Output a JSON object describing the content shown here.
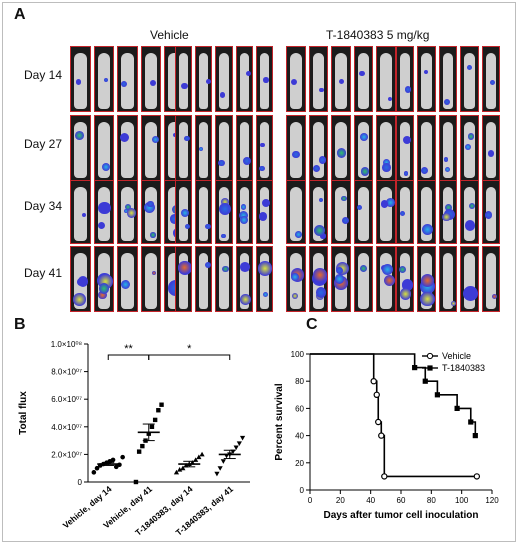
{
  "panels": {
    "a": {
      "label": "A",
      "groups": [
        "Vehicle",
        "T-1840383 5 mg/kg"
      ],
      "days": [
        "Day 14",
        "Day 27",
        "Day 34",
        "Day 41"
      ]
    },
    "b": {
      "label": "B"
    },
    "c": {
      "label": "C"
    }
  },
  "chart_data": [
    {
      "type": "scatter",
      "panel": "B",
      "ylabel": "Total flux",
      "categories": [
        "Vehicle, day 14",
        "Vehicle, day 41",
        "T-1840383, day 14",
        "T-1840383, day 41"
      ],
      "y_ticks": [
        0,
        20000000,
        40000000,
        60000000,
        80000000,
        100000000
      ],
      "y_tick_labels": [
        "0",
        "2.0×10⁰⁷",
        "4.0×10⁰⁷",
        "6.0×10⁰⁷",
        "8.0×10⁰⁷",
        "1.0×10⁰⁸"
      ],
      "ylim": [
        0,
        100000000
      ],
      "series": [
        {
          "values": [
            7000000,
            10000000,
            12000000,
            13000000,
            14000000,
            15000000,
            16000000,
            11000000,
            12500000,
            18000000
          ],
          "mean": 13000000,
          "sem": 1000000
        },
        {
          "values": [
            0,
            22000000,
            26000000,
            30000000,
            35000000,
            40000000,
            45000000,
            52000000,
            56000000
          ],
          "mean": 36000000,
          "sem": 6000000
        },
        {
          "values": [
            7000000,
            9000000,
            10000000,
            12000000,
            13000000,
            14000000,
            16000000,
            18000000,
            20000000
          ],
          "mean": 13000000,
          "sem": 2000000
        },
        {
          "values": [
            6000000,
            10000000,
            15000000,
            19000000,
            20000000,
            22000000,
            25000000,
            28000000,
            32000000
          ],
          "mean": 20000000,
          "sem": 3000000
        }
      ],
      "annotations": [
        {
          "text": "**",
          "from": 0,
          "to": 1
        },
        {
          "text": "*",
          "from": 1,
          "to": 3
        }
      ]
    },
    {
      "type": "line",
      "panel": "C",
      "xlabel": "Days after tumor cell inoculation",
      "ylabel": "Percent survival",
      "xlim": [
        0,
        120
      ],
      "ylim": [
        0,
        100
      ],
      "x_ticks": [
        0,
        20,
        40,
        60,
        80,
        100,
        120
      ],
      "y_ticks": [
        0,
        20,
        40,
        60,
        80,
        100
      ],
      "legend_position": "top-right",
      "series": [
        {
          "name": "Vehicle",
          "marker": "open-circle",
          "steps": [
            [
              0,
              100
            ],
            [
              42,
              100
            ],
            [
              42,
              80
            ],
            [
              44,
              80
            ],
            [
              44,
              70
            ],
            [
              45,
              70
            ],
            [
              45,
              50
            ],
            [
              47,
              50
            ],
            [
              47,
              40
            ],
            [
              49,
              40
            ],
            [
              49,
              10
            ],
            [
              110,
              10
            ]
          ],
          "points": [
            [
              42,
              80
            ],
            [
              44,
              70
            ],
            [
              45,
              50
            ],
            [
              47,
              40
            ],
            [
              49,
              10
            ],
            [
              110,
              10
            ]
          ]
        },
        {
          "name": "T-1840383",
          "marker": "filled-square",
          "steps": [
            [
              0,
              100
            ],
            [
              69,
              100
            ],
            [
              69,
              90
            ],
            [
              76,
              90
            ],
            [
              76,
              80
            ],
            [
              84,
              80
            ],
            [
              84,
              70
            ],
            [
              97,
              70
            ],
            [
              97,
              60
            ],
            [
              106,
              60
            ],
            [
              106,
              50
            ],
            [
              109,
              50
            ],
            [
              109,
              40
            ]
          ],
          "points": [
            [
              69,
              90
            ],
            [
              76,
              80
            ],
            [
              84,
              70
            ],
            [
              97,
              60
            ],
            [
              106,
              50
            ],
            [
              109,
              40
            ]
          ]
        }
      ]
    }
  ]
}
